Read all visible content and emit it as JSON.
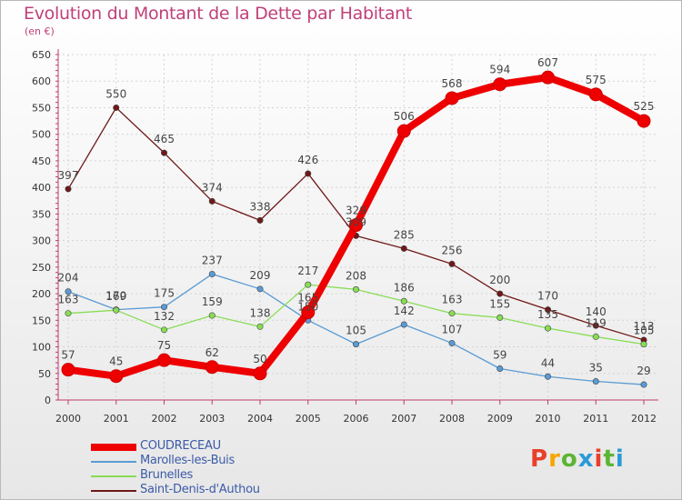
{
  "title": "Evolution du Montant de la Dette par Habitant",
  "subtitle": "(en €)",
  "logo": {
    "text": "Proxiti",
    "colors": [
      "#e8402a",
      "#f7a600",
      "#5bb533",
      "#2a9ad8",
      "#e8402a",
      "#5bb533",
      "#2a9ad8"
    ]
  },
  "chart_data": {
    "type": "line",
    "title": "Evolution du Montant de la Dette par Habitant",
    "subtitle": "(en €)",
    "x": [
      "2000",
      "2001",
      "2002",
      "2003",
      "2004",
      "2005",
      "2006",
      "2007",
      "2008",
      "2009",
      "2010",
      "2011",
      "2012"
    ],
    "ylim": [
      0,
      650
    ],
    "yticks": [
      0,
      50,
      100,
      150,
      200,
      250,
      300,
      350,
      400,
      450,
      500,
      550,
      600,
      650
    ],
    "grid": true,
    "legend_position": "bottom-left",
    "series": [
      {
        "name": "COUDRECEAU",
        "color": "#ee0000",
        "values": [
          57,
          45,
          75,
          62,
          50,
          165,
          329,
          506,
          568,
          594,
          607,
          575,
          525
        ]
      },
      {
        "name": "Marolles-les-Buis",
        "color": "#5a9bd4",
        "values": [
          204,
          170,
          175,
          237,
          209,
          150,
          105,
          142,
          107,
          59,
          44,
          35,
          29
        ]
      },
      {
        "name": "Brunelles",
        "color": "#88dd55",
        "values": [
          163,
          169,
          132,
          159,
          138,
          217,
          208,
          186,
          163,
          155,
          135,
          119,
          105
        ]
      },
      {
        "name": "Saint-Denis-d'Authou",
        "color": "#701818",
        "values": [
          397,
          550,
          465,
          374,
          338,
          426,
          309,
          285,
          256,
          200,
          170,
          140,
          113
        ]
      }
    ]
  }
}
